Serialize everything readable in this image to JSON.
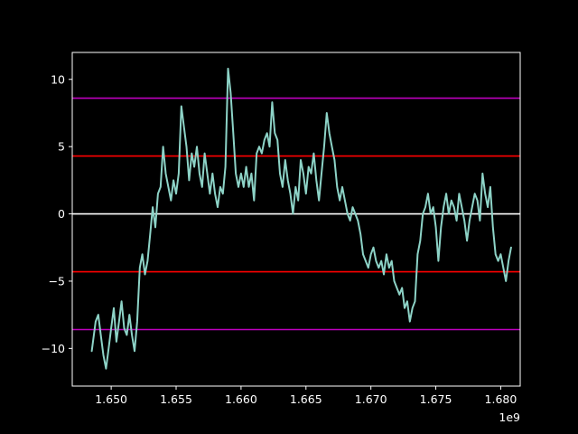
{
  "chart_data": {
    "type": "line",
    "title": "",
    "xlabel": "",
    "ylabel": "",
    "background": "#000000",
    "axis_color": "#ffffff",
    "grid": false,
    "legend": "none",
    "x_offset_label": "1e9",
    "xlim": [
      1.647,
      1.6815
    ],
    "ylim": [
      -12.8,
      12.0
    ],
    "x_ticks": [
      1.65,
      1.655,
      1.66,
      1.665,
      1.67,
      1.675,
      1.68
    ],
    "x_tick_labels": [
      "1.650",
      "1.655",
      "1.660",
      "1.665",
      "1.670",
      "1.675",
      "1.680"
    ],
    "y_ticks": [
      10,
      5,
      0,
      -5,
      -10
    ],
    "y_tick_labels": [
      "10",
      "5",
      "0",
      "−5",
      "−10"
    ],
    "hlines": [
      {
        "y": 8.6,
        "color": "#bf00bf"
      },
      {
        "y": 4.3,
        "color": "#ff0000"
      },
      {
        "y": 0,
        "color": "#ffffff"
      },
      {
        "y": -4.3,
        "color": "#ff0000"
      },
      {
        "y": -8.6,
        "color": "#bf00bf"
      }
    ],
    "series": [
      {
        "color": "#8dd3c7",
        "points": [
          [
            1.6485,
            -10.2
          ],
          [
            1.6488,
            -8.0
          ],
          [
            1.649,
            -7.5
          ],
          [
            1.6492,
            -9.0
          ],
          [
            1.6494,
            -10.5
          ],
          [
            1.6496,
            -11.5
          ],
          [
            1.6498,
            -10.0
          ],
          [
            1.65,
            -8.5
          ],
          [
            1.6502,
            -7.0
          ],
          [
            1.6504,
            -9.5
          ],
          [
            1.6506,
            -8.0
          ],
          [
            1.6508,
            -6.5
          ],
          [
            1.651,
            -8.5
          ],
          [
            1.6512,
            -9.0
          ],
          [
            1.6514,
            -7.5
          ],
          [
            1.6516,
            -9.0
          ],
          [
            1.6518,
            -10.2
          ],
          [
            1.652,
            -8.0
          ],
          [
            1.6522,
            -4.0
          ],
          [
            1.6524,
            -3.0
          ],
          [
            1.6526,
            -4.5
          ],
          [
            1.6528,
            -3.5
          ],
          [
            1.653,
            -1.5
          ],
          [
            1.6532,
            0.5
          ],
          [
            1.6534,
            -1.0
          ],
          [
            1.6536,
            1.5
          ],
          [
            1.6538,
            2.0
          ],
          [
            1.654,
            5.0
          ],
          [
            1.6542,
            3.0
          ],
          [
            1.6544,
            2.0
          ],
          [
            1.6546,
            1.0
          ],
          [
            1.6548,
            2.5
          ],
          [
            1.655,
            1.5
          ],
          [
            1.6552,
            3.0
          ],
          [
            1.6554,
            8.0
          ],
          [
            1.6556,
            6.5
          ],
          [
            1.6558,
            5.0
          ],
          [
            1.656,
            2.5
          ],
          [
            1.6562,
            4.5
          ],
          [
            1.6564,
            3.5
          ],
          [
            1.6566,
            5.0
          ],
          [
            1.6568,
            3.0
          ],
          [
            1.657,
            2.0
          ],
          [
            1.6572,
            4.5
          ],
          [
            1.6574,
            3.0
          ],
          [
            1.6576,
            1.5
          ],
          [
            1.6578,
            3.0
          ],
          [
            1.658,
            1.5
          ],
          [
            1.6582,
            0.5
          ],
          [
            1.6584,
            2.0
          ],
          [
            1.6586,
            1.5
          ],
          [
            1.6588,
            3.5
          ],
          [
            1.659,
            10.8
          ],
          [
            1.6592,
            9.0
          ],
          [
            1.6594,
            6.0
          ],
          [
            1.6596,
            3.0
          ],
          [
            1.6598,
            2.0
          ],
          [
            1.66,
            3.0
          ],
          [
            1.6602,
            2.0
          ],
          [
            1.6604,
            3.5
          ],
          [
            1.6606,
            2.0
          ],
          [
            1.6608,
            3.0
          ],
          [
            1.661,
            1.0
          ],
          [
            1.6612,
            4.5
          ],
          [
            1.6614,
            5.0
          ],
          [
            1.6616,
            4.5
          ],
          [
            1.6618,
            5.5
          ],
          [
            1.662,
            6.0
          ],
          [
            1.6622,
            5.0
          ],
          [
            1.6624,
            8.3
          ],
          [
            1.6626,
            6.0
          ],
          [
            1.6628,
            5.5
          ],
          [
            1.663,
            3.0
          ],
          [
            1.6632,
            2.0
          ],
          [
            1.6634,
            4.0
          ],
          [
            1.6636,
            2.5
          ],
          [
            1.6638,
            1.5
          ],
          [
            1.664,
            0.0
          ],
          [
            1.6642,
            2.0
          ],
          [
            1.6644,
            1.0
          ],
          [
            1.6646,
            4.0
          ],
          [
            1.6648,
            3.0
          ],
          [
            1.665,
            1.5
          ],
          [
            1.6652,
            3.5
          ],
          [
            1.6654,
            3.0
          ],
          [
            1.6656,
            4.5
          ],
          [
            1.6658,
            2.5
          ],
          [
            1.666,
            1.0
          ],
          [
            1.6662,
            3.0
          ],
          [
            1.6664,
            5.0
          ],
          [
            1.6666,
            7.5
          ],
          [
            1.6668,
            6.0
          ],
          [
            1.667,
            5.0
          ],
          [
            1.6672,
            4.0
          ],
          [
            1.6674,
            2.0
          ],
          [
            1.6676,
            1.0
          ],
          [
            1.6678,
            2.0
          ],
          [
            1.668,
            1.0
          ],
          [
            1.6682,
            0.0
          ],
          [
            1.6684,
            -0.5
          ],
          [
            1.6686,
            0.5
          ],
          [
            1.6688,
            0.0
          ],
          [
            1.669,
            -0.5
          ],
          [
            1.6692,
            -1.5
          ],
          [
            1.6694,
            -3.0
          ],
          [
            1.6696,
            -3.5
          ],
          [
            1.6698,
            -4.0
          ],
          [
            1.67,
            -3.0
          ],
          [
            1.6702,
            -2.5
          ],
          [
            1.6704,
            -3.5
          ],
          [
            1.6706,
            -4.0
          ],
          [
            1.6708,
            -3.5
          ],
          [
            1.671,
            -4.5
          ],
          [
            1.6712,
            -3.0
          ],
          [
            1.6714,
            -4.0
          ],
          [
            1.6716,
            -3.5
          ],
          [
            1.6718,
            -5.0
          ],
          [
            1.672,
            -5.5
          ],
          [
            1.6722,
            -6.0
          ],
          [
            1.6724,
            -5.5
          ],
          [
            1.6726,
            -7.0
          ],
          [
            1.6728,
            -6.5
          ],
          [
            1.673,
            -8.0
          ],
          [
            1.6732,
            -7.0
          ],
          [
            1.6734,
            -6.5
          ],
          [
            1.6736,
            -3.0
          ],
          [
            1.6738,
            -2.0
          ],
          [
            1.674,
            0.0
          ],
          [
            1.6742,
            0.5
          ],
          [
            1.6744,
            1.5
          ],
          [
            1.6746,
            0.0
          ],
          [
            1.6748,
            0.5
          ],
          [
            1.675,
            -1.0
          ],
          [
            1.6752,
            -3.5
          ],
          [
            1.6754,
            -1.0
          ],
          [
            1.6756,
            0.5
          ],
          [
            1.6758,
            1.5
          ],
          [
            1.676,
            0.0
          ],
          [
            1.6762,
            1.0
          ],
          [
            1.6764,
            0.5
          ],
          [
            1.6766,
            -0.5
          ],
          [
            1.6768,
            1.5
          ],
          [
            1.677,
            0.5
          ],
          [
            1.6772,
            -0.5
          ],
          [
            1.6774,
            -2.0
          ],
          [
            1.6776,
            -0.5
          ],
          [
            1.6778,
            0.5
          ],
          [
            1.678,
            1.5
          ],
          [
            1.6782,
            1.0
          ],
          [
            1.6784,
            -0.5
          ],
          [
            1.6786,
            3.0
          ],
          [
            1.6788,
            1.5
          ],
          [
            1.679,
            0.5
          ],
          [
            1.6792,
            2.0
          ],
          [
            1.6794,
            -1.0
          ],
          [
            1.6796,
            -3.0
          ],
          [
            1.6798,
            -3.5
          ],
          [
            1.68,
            -3.0
          ],
          [
            1.6802,
            -4.0
          ],
          [
            1.6804,
            -5.0
          ],
          [
            1.6806,
            -3.5
          ],
          [
            1.6808,
            -2.5
          ]
        ]
      }
    ]
  }
}
